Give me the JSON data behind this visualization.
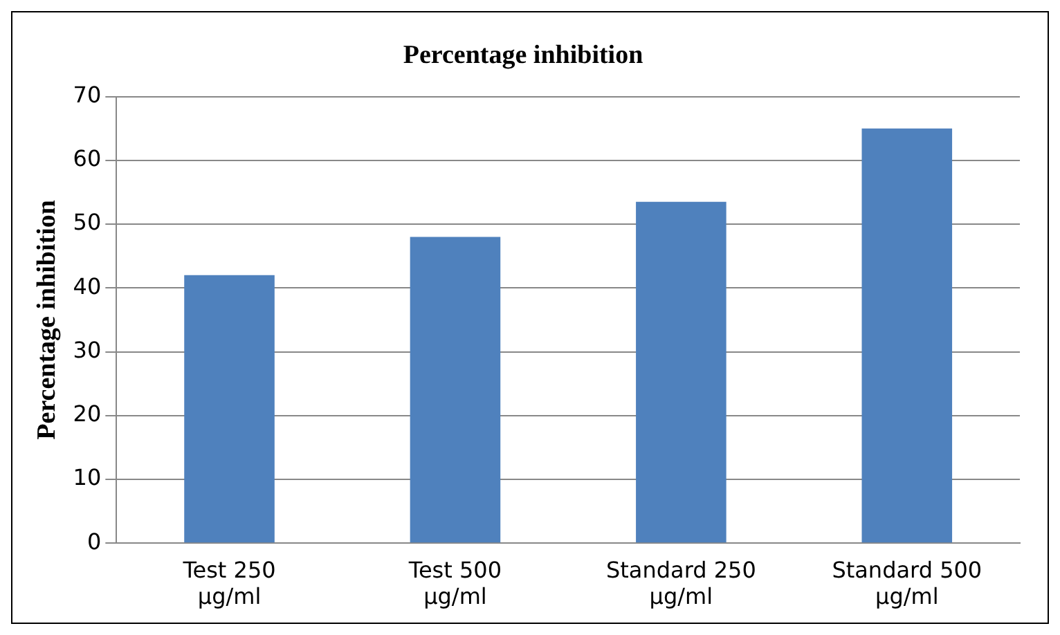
{
  "chart_data": {
    "type": "bar",
    "title": "Percentage inhibition",
    "ylabel": "Percentage inhibition",
    "categories": [
      "Test 250 µg/ml",
      "Test 500 µg/ml",
      "Standard 250 µg/ml",
      "Standard 500 µg/ml"
    ],
    "values": [
      42,
      48,
      53.5,
      65
    ],
    "color": "#4f81bd",
    "ylim": [
      0,
      70
    ],
    "yticks": [
      0,
      10,
      20,
      30,
      40,
      50,
      60,
      70
    ],
    "grid": "y",
    "legend": false
  }
}
